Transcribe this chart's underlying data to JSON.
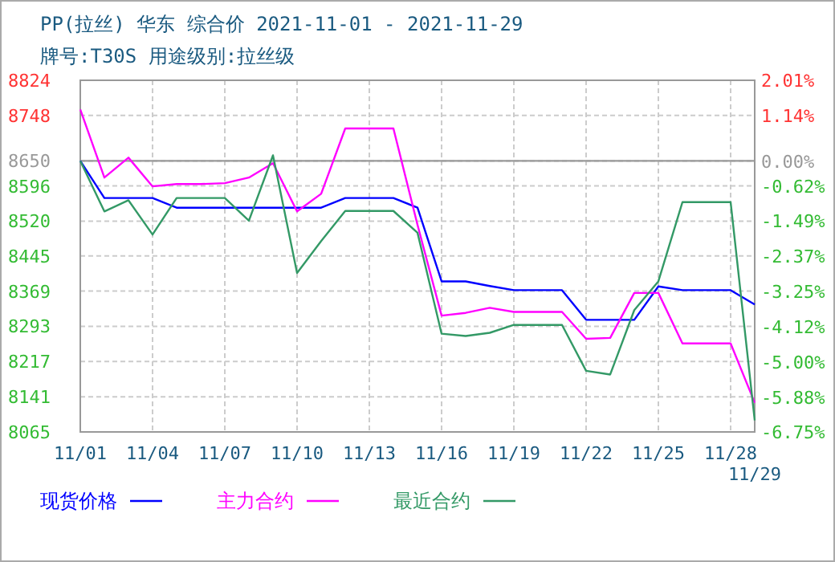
{
  "chart_data": {
    "type": "line",
    "title": "PP(拉丝) 华东 综合价 2021-11-01 - 2021-11-29",
    "subtitle": "牌号:T30S 用途级别:拉丝级",
    "categories": [
      "11/01",
      null,
      null,
      "11/04",
      null,
      null,
      "11/07",
      null,
      null,
      "11/10",
      null,
      null,
      "11/13",
      null,
      null,
      "11/16",
      null,
      null,
      "11/19",
      null,
      null,
      "11/22",
      null,
      null,
      "11/25",
      null,
      null,
      "11/28",
      "11/29"
    ],
    "series": [
      {
        "name": "现货价格",
        "color": "#0000ff",
        "values": [
          8650,
          8570,
          8570,
          8570,
          8549,
          8549,
          8549,
          8549,
          8549,
          8549,
          8549,
          8570,
          8570,
          8570,
          8549,
          8390,
          8390,
          8380,
          8371,
          8371,
          8371,
          8307,
          8307,
          8307,
          8379,
          8371,
          8371,
          8371,
          8340
        ]
      },
      {
        "name": "主力合约",
        "color": "#ff00ff",
        "values": [
          8761,
          8614,
          8657,
          8595,
          8600,
          8600,
          8602,
          8614,
          8645,
          8541,
          8579,
          8720,
          8720,
          8720,
          8512,
          8316,
          8322,
          8333,
          8324,
          8324,
          8324,
          8266,
          8268,
          8365,
          8365,
          8256,
          8256,
          8256,
          8128
        ]
      },
      {
        "name": "最近合约",
        "color": "#339966",
        "values": [
          8650,
          8541,
          8565,
          8491,
          8570,
          8570,
          8570,
          8521,
          8662,
          8408,
          8477,
          8542,
          8542,
          8542,
          8495,
          8277,
          8272,
          8279,
          8296,
          8296,
          8296,
          8197,
          8189,
          8328,
          8390,
          8561,
          8561,
          8561,
          8090
        ]
      }
    ],
    "ylim": [
      8065,
      8824
    ],
    "yticks": [
      8065,
      8141,
      8217,
      8293,
      8369,
      8445,
      8520,
      8596,
      8650,
      8748,
      8824
    ],
    "y2lim": [
      -6.75,
      2.01
    ],
    "y2ticks": [
      {
        "value": -6.75,
        "label": "-6.75%"
      },
      {
        "value": -5.88,
        "label": "-5.88%"
      },
      {
        "value": -5.0,
        "label": "-5.00%"
      },
      {
        "value": -4.12,
        "label": "-4.12%"
      },
      {
        "value": -3.25,
        "label": "-3.25%"
      },
      {
        "value": -2.37,
        "label": "-2.37%"
      },
      {
        "value": -1.49,
        "label": "-1.49%"
      },
      {
        "value": -0.62,
        "label": "-0.62%"
      },
      {
        "value": 0,
        "label": "0.00%"
      },
      {
        "value": 1.14,
        "label": "1.14%"
      },
      {
        "value": 2.01,
        "label": "2.01%"
      }
    ],
    "ref_lines": [
      {
        "axis": "y",
        "value": 8650,
        "color": "#999999"
      }
    ],
    "grid": true,
    "legend": "bottom",
    "line_style": "solid",
    "marker": "none"
  }
}
